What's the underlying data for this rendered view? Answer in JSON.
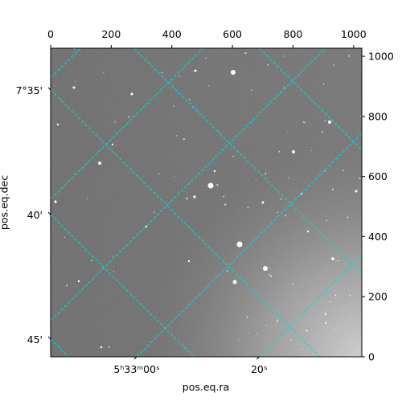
{
  "chart_data": {
    "type": "image",
    "xlabel": "pos.eq.ra",
    "ylabel": "pos.eq.dec",
    "xlim": [
      0,
      1027
    ],
    "ylim": [
      0,
      1027
    ],
    "xticks": [
      0,
      200,
      400,
      600,
      800,
      1000
    ],
    "yticks": [
      0,
      200,
      400,
      600,
      800,
      1000
    ],
    "ra_ticks": [
      {
        "value": -928,
        "label": null
      },
      {
        "value": -524,
        "label": null
      },
      {
        "value": -120,
        "label": null
      },
      {
        "value": 284,
        "label": "5ʰ33ᵐ00ˢ"
      },
      {
        "value": 688,
        "label": "20ˢ"
      }
    ],
    "dec_ticks": [
      {
        "value": 59,
        "label": "45'"
      },
      {
        "value": 473,
        "label": "40'"
      },
      {
        "value": 888,
        "label": "7°35'"
      },
      {
        "value": 1302,
        "label": null
      },
      {
        "value": 1716,
        "label": null
      }
    ],
    "grid_color": "#00dede"
  }
}
